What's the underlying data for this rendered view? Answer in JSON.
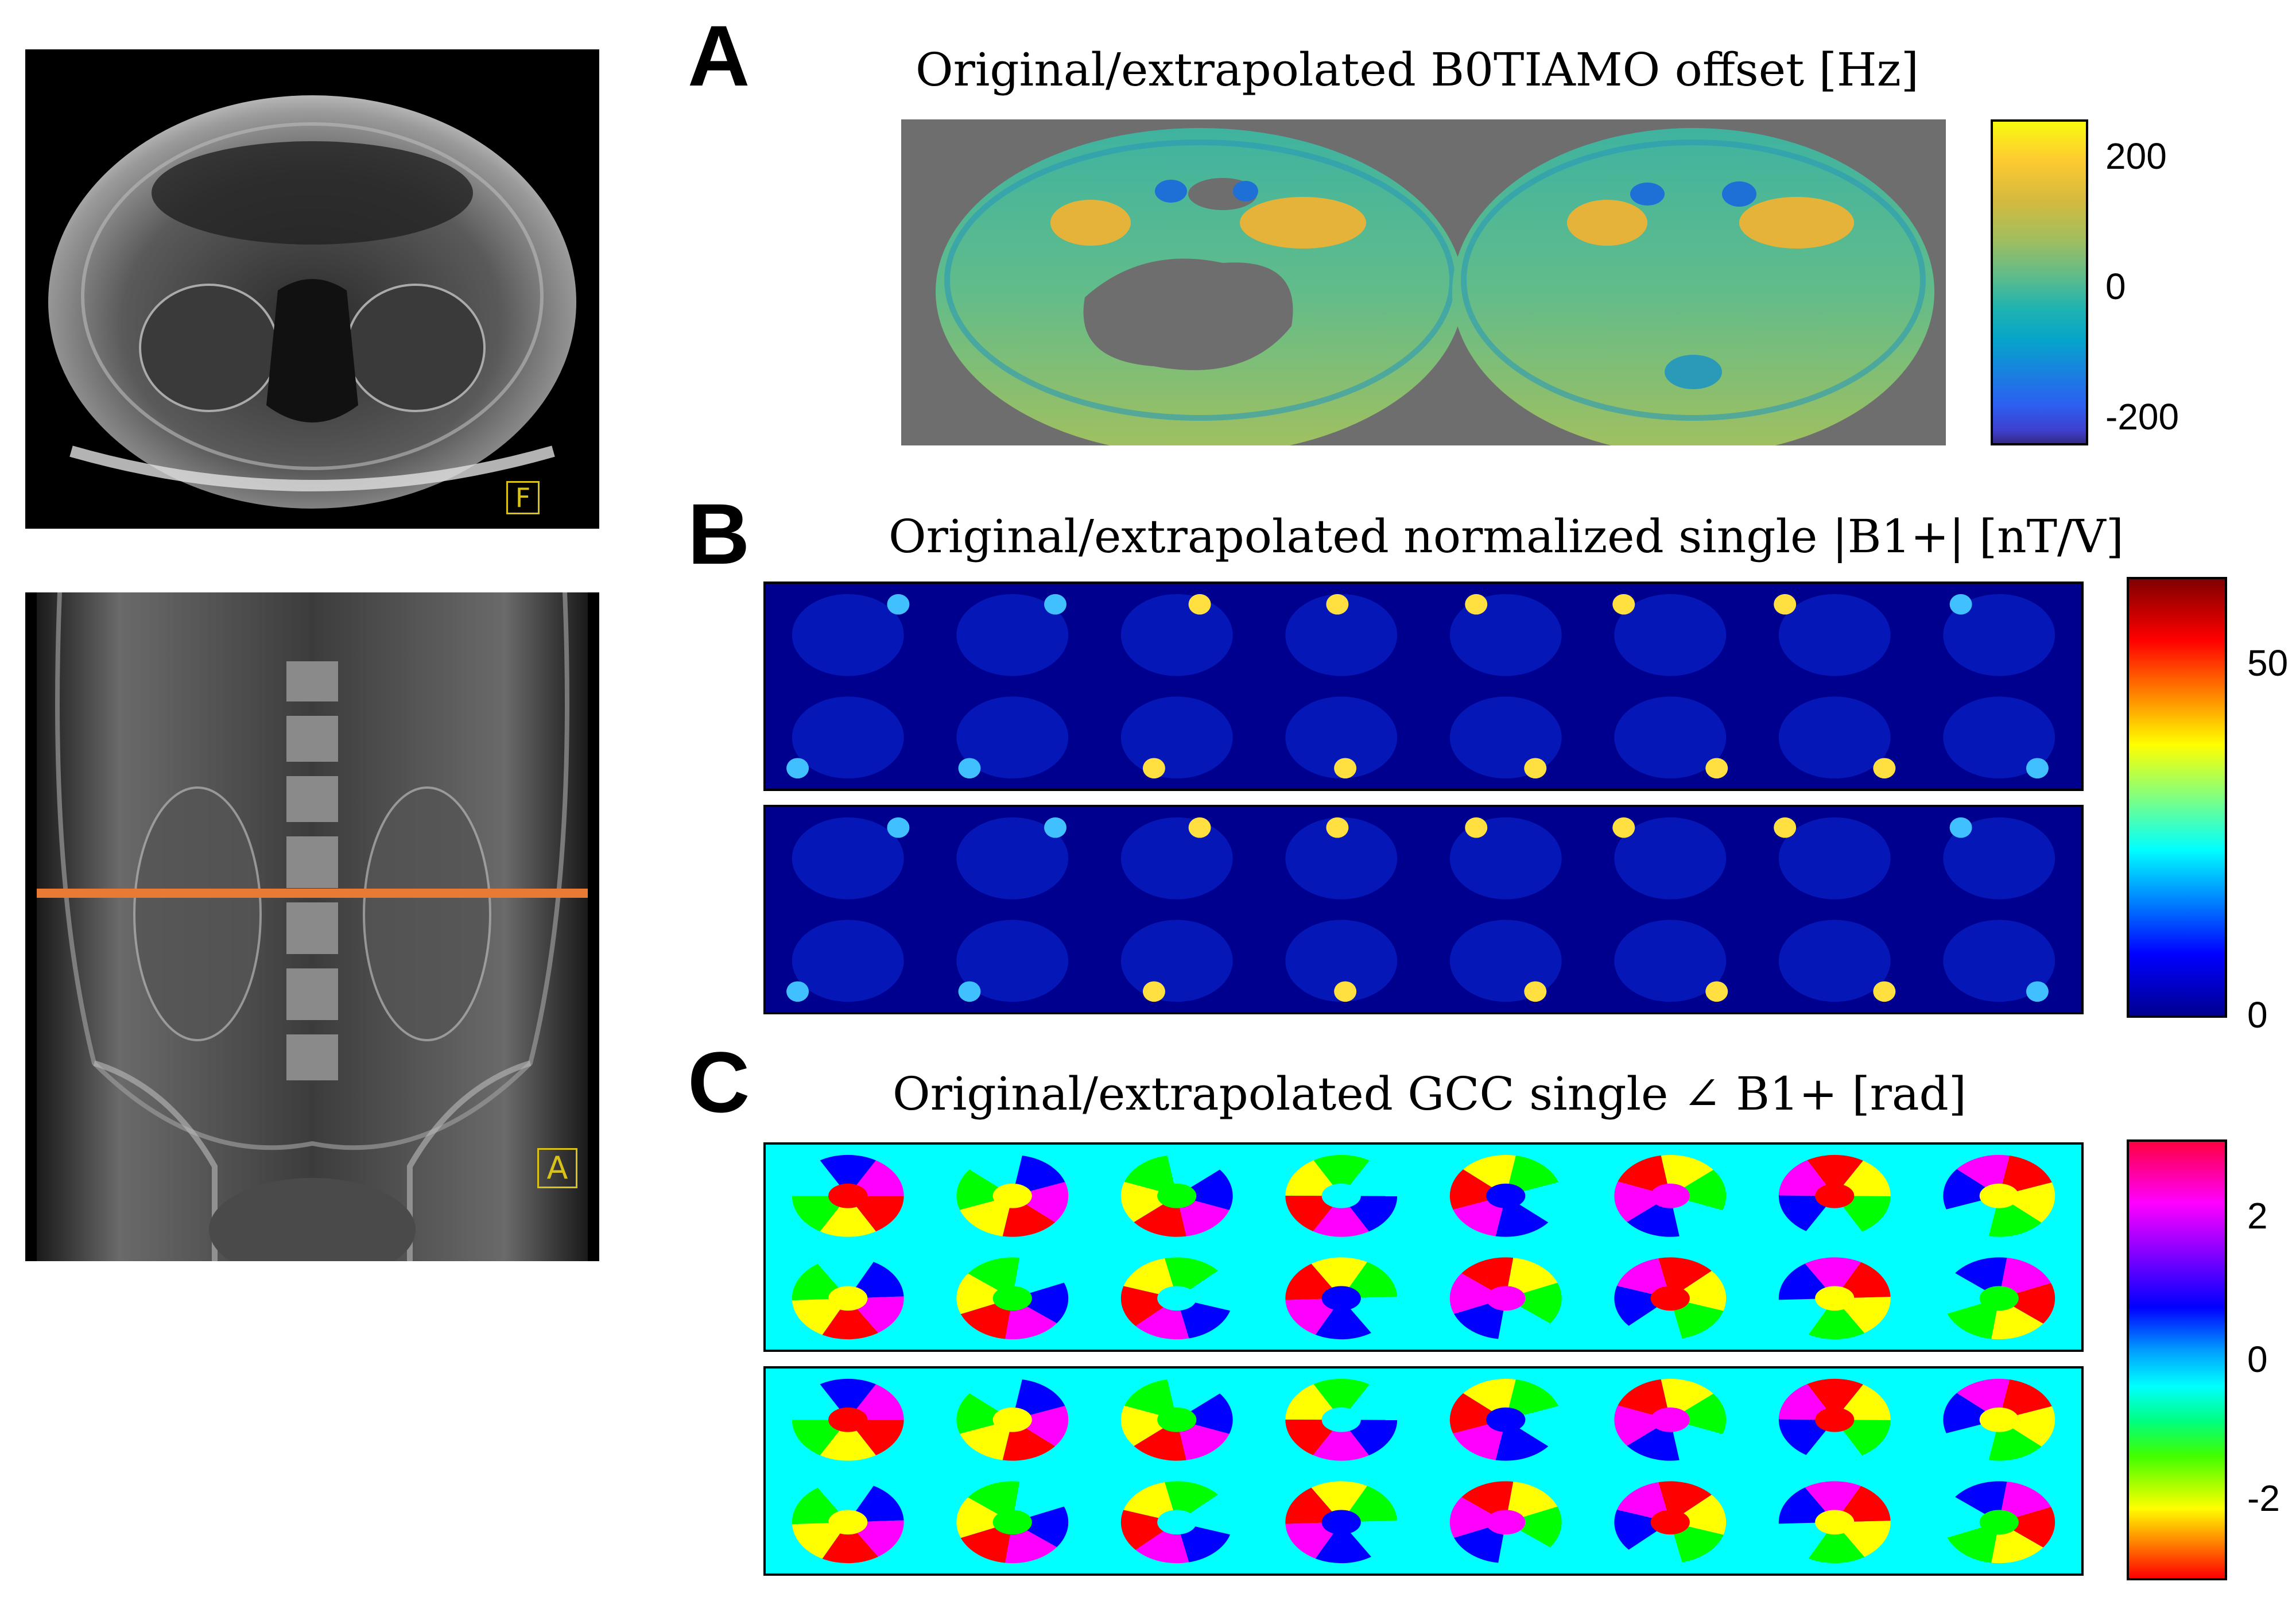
{
  "panels": {
    "A": {
      "letter": "A",
      "title": "Original/extrapolated B0TIAMO offset [Hz]",
      "colorbar_ticks": [
        "200",
        "0",
        "-200"
      ],
      "colorbar_tick_values": [
        200,
        0,
        -200
      ],
      "colormap": "parula"
    },
    "B": {
      "letter": "B",
      "title": "Original/extrapolated normalized single |B1+| [nT/V]",
      "colorbar_ticks": [
        "50",
        "0"
      ],
      "colorbar_tick_values": [
        50,
        0
      ],
      "colormap": "jet"
    },
    "C": {
      "letter": "C",
      "title": "Original/extrapolated GCC single ∠ B1+ [rad]",
      "colorbar_ticks": [
        "2",
        "0",
        "-2"
      ],
      "colorbar_tick_values": [
        2,
        0,
        -2
      ],
      "colormap": "hsv"
    }
  },
  "mri": {
    "axial_marker": "F",
    "coronal_marker": "A"
  },
  "colors": {
    "slice_line": "#e87a33",
    "marker": "#d8c21a",
    "background_A": "#6e6e6e",
    "background_B": "#00008f",
    "background_C": "#00ffff"
  },
  "grid": {
    "rows_per_block": 2,
    "cols": 8
  }
}
